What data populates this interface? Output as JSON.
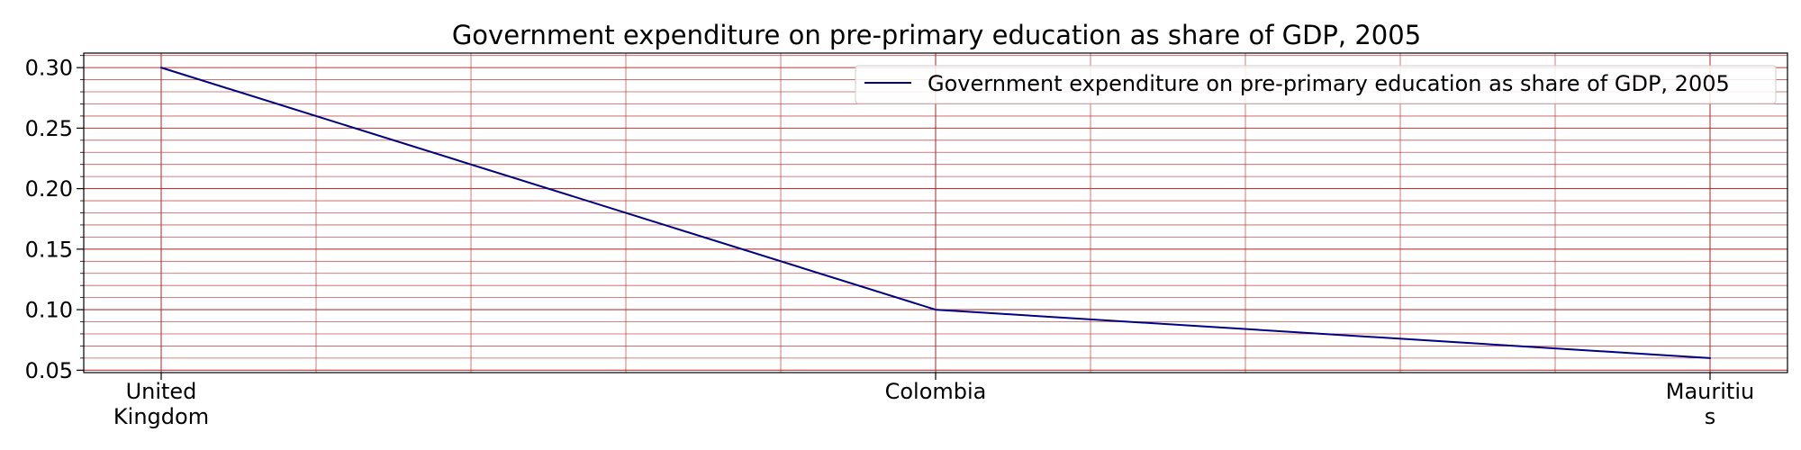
{
  "chart_data": {
    "type": "line",
    "title": "Government expenditure on pre-primary education as share of GDP, 2005",
    "xlabel": "",
    "ylabel": "",
    "categories": [
      "United Kingdom",
      "Colombia",
      "Mauritius"
    ],
    "category_tick_lines": [
      [
        "United",
        "Kingdom"
      ],
      [
        "Colombia"
      ],
      [
        "Mauritiu",
        "s"
      ]
    ],
    "series": [
      {
        "name": "Government expenditure on pre-primary education as share of GDP, 2005",
        "values": [
          0.3,
          0.1,
          0.06
        ],
        "color": "#000080"
      }
    ],
    "ylim": [
      0.048,
      0.312
    ],
    "yticks": [
      "0.05",
      "0.10",
      "0.15",
      "0.20",
      "0.25",
      "0.30"
    ],
    "grid": true,
    "grid_color": "#b22222",
    "legend_position": "top-right"
  }
}
